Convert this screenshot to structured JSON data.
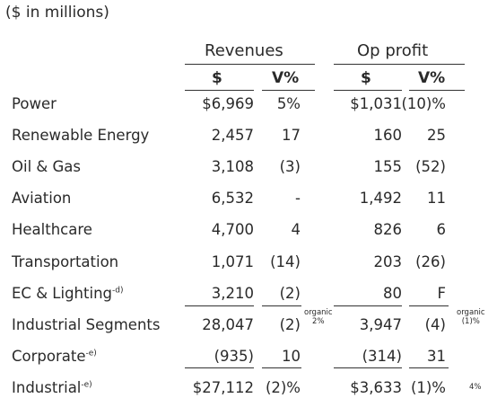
{
  "title": "($ in millions)",
  "groups": {
    "revenues": "Revenues",
    "op_profit": "Op profit"
  },
  "subheaders": {
    "rev_dollar": "$",
    "rev_vpct": "V%",
    "op_dollar": "$",
    "op_vpct": "V%"
  },
  "rows": [
    {
      "label": "Power",
      "sup": "",
      "rev": "$6,969",
      "rev_v": "5%",
      "op": "$1,031",
      "op_v": "(10)%"
    },
    {
      "label": "Renewable Energy",
      "sup": "",
      "rev": "2,457",
      "rev_v": "17",
      "op": "160",
      "op_v": "25"
    },
    {
      "label": "Oil & Gas",
      "sup": "",
      "rev": "3,108",
      "rev_v": "(3)",
      "op": "155",
      "op_v": "(52)"
    },
    {
      "label": "Aviation",
      "sup": "",
      "rev": "6,532",
      "rev_v": "-",
      "op": "1,492",
      "op_v": "11"
    },
    {
      "label": "Healthcare",
      "sup": "",
      "rev": "4,700",
      "rev_v": "4",
      "op": "826",
      "op_v": "6"
    },
    {
      "label": "Transportation",
      "sup": "",
      "rev": "1,071",
      "rev_v": "(14)",
      "op": "203",
      "op_v": "(26)"
    },
    {
      "label": "EC & Lighting",
      "sup": "-d)",
      "rev": "3,210",
      "rev_v": "(2)",
      "op": "80",
      "op_v": "F"
    },
    {
      "label": "Industrial Segments",
      "sup": "",
      "rev": "28,047",
      "rev_v": "(2)",
      "op": "3,947",
      "op_v": "(4)"
    },
    {
      "label": "Corporate",
      "sup": "-e)",
      "rev": "(935)",
      "rev_v": "10",
      "op": "(314)",
      "op_v": "31"
    },
    {
      "label": "Industrial",
      "sup": "-e)",
      "rev": "$27,112",
      "rev_v": "(2)%",
      "op": "$3,633",
      "op_v": "(1)%"
    }
  ],
  "organic_notes": {
    "rev_word": "organic",
    "rev_value": "2%",
    "op_word": "organic",
    "op_value": "(1)%",
    "industrial_extra": "4%"
  }
}
